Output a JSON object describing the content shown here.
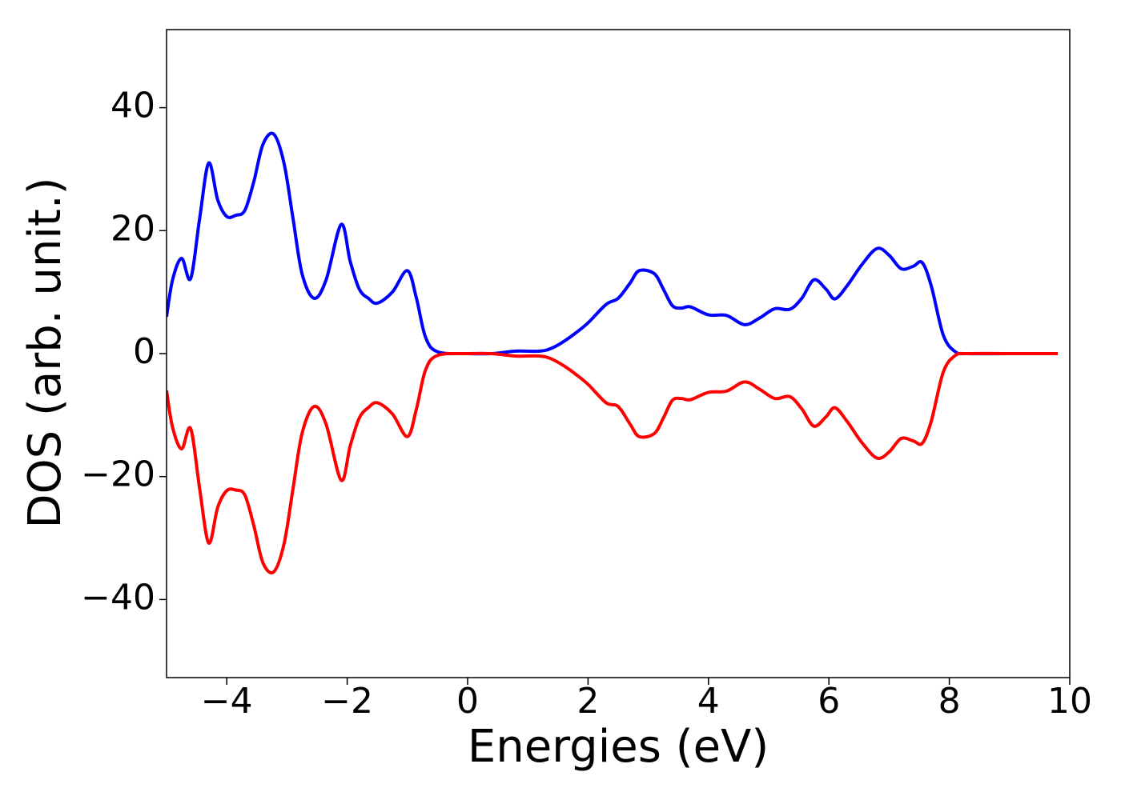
{
  "chart_data": {
    "type": "line",
    "xlabel": "Energies (eV)",
    "ylabel": "DOS (arb. unit.)",
    "x": [
      -5,
      -4.9,
      -4.75,
      -4.6,
      -4.45,
      -4.3,
      -4.15,
      -4.0,
      -3.85,
      -3.7,
      -3.55,
      -3.4,
      -3.22,
      -3.05,
      -2.9,
      -2.75,
      -2.55,
      -2.35,
      -2.1,
      -1.95,
      -1.8,
      -1.65,
      -1.5,
      -1.25,
      -1.0,
      -0.85,
      -0.7,
      -0.5,
      0,
      0.4,
      0.8,
      1.2,
      1.4,
      1.6,
      1.8,
      2.0,
      2.3,
      2.5,
      2.7,
      2.85,
      3.1,
      3.25,
      3.4,
      3.55,
      3.7,
      4.0,
      4.3,
      4.6,
      4.85,
      5.1,
      5.35,
      5.55,
      5.75,
      5.95,
      6.1,
      6.3,
      6.55,
      6.8,
      7.0,
      7.2,
      7.4,
      7.55,
      7.7,
      7.9,
      8.1,
      8.3,
      9.0,
      9.8
    ],
    "series": [
      {
        "color": "#0000ff",
        "values": [
          6,
          12,
          15.5,
          12.2,
          22,
          31,
          25,
          22.3,
          22.5,
          23.3,
          28,
          34,
          35.7,
          31,
          22,
          13,
          9,
          12,
          21,
          15,
          10.5,
          9,
          8.2,
          10,
          13.5,
          9,
          2.7,
          0.3,
          0,
          0,
          0.4,
          0.4,
          0.9,
          2,
          3.4,
          5,
          8,
          9,
          11.5,
          13.5,
          13,
          10.5,
          7.8,
          7.4,
          7.6,
          6.3,
          6.2,
          4.7,
          5.8,
          7.3,
          7.2,
          9,
          12,
          10.5,
          8.9,
          11,
          14.5,
          17.1,
          16,
          13.8,
          14.2,
          14.8,
          11,
          3,
          0.3,
          0,
          0,
          0
        ]
      },
      {
        "color": "#ff0000",
        "values": [
          -6,
          -12,
          -15.5,
          -12.2,
          -22,
          -30.8,
          -25,
          -22.3,
          -22.2,
          -23,
          -28,
          -34,
          -35.5,
          -31,
          -22,
          -13,
          -8.6,
          -11.5,
          -20.6,
          -15,
          -10.5,
          -8.8,
          -8,
          -9.8,
          -13.5,
          -9,
          -2.7,
          -0.3,
          0,
          0,
          -0.4,
          -0.4,
          -0.9,
          -2,
          -3.4,
          -5,
          -8,
          -8.6,
          -11.5,
          -13.5,
          -13,
          -10.5,
          -7.6,
          -7.3,
          -7.5,
          -6.3,
          -6.1,
          -4.6,
          -5.8,
          -7.3,
          -7,
          -9,
          -11.8,
          -10.3,
          -8.8,
          -11,
          -14.5,
          -17,
          -16,
          -13.8,
          -14.2,
          -14.6,
          -11,
          -3,
          -0.3,
          0,
          0,
          0
        ]
      }
    ],
    "xlim": [
      -5,
      10
    ],
    "ylim": [
      -52.7,
      52.7
    ],
    "xticks": [
      {
        "value": -4,
        "label": "−4"
      },
      {
        "value": -2,
        "label": "−2"
      },
      0,
      2,
      4,
      6,
      8,
      10
    ],
    "yticks": [
      {
        "value": -40,
        "label": "−40"
      },
      {
        "value": -20,
        "label": "−20"
      },
      0,
      20,
      40
    ]
  }
}
